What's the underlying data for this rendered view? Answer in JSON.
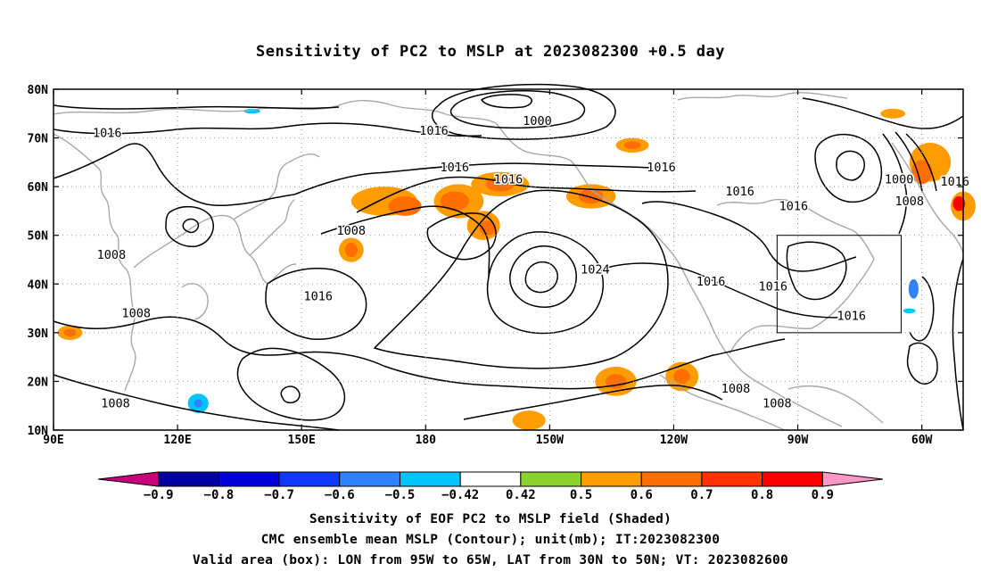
{
  "title": "Sensitivity of PC2 to MSLP at 2023082300 +0.5 day",
  "captions": {
    "line1": "Sensitivity of EOF PC2 to MSLP field (Shaded)",
    "line2": "CMC ensemble mean MSLP (Contour); unit(mb); IT:2023082300",
    "line3": "Valid area (box): LON from 95W to 65W, LAT from 30N to 50N; VT: 2023082600"
  },
  "chart_data": {
    "type": "contour-map",
    "title": "Sensitivity of PC2 to MSLP at 2023082300 +0.5 day",
    "xlim_lon_east": [
      90,
      310
    ],
    "ylim_lat": [
      10,
      80
    ],
    "x_ticks": [
      {
        "lon": 90,
        "label": "90E"
      },
      {
        "lon": 120,
        "label": "120E"
      },
      {
        "lon": 150,
        "label": "150E"
      },
      {
        "lon": 180,
        "label": "180"
      },
      {
        "lon": 210,
        "label": "150W"
      },
      {
        "lon": 240,
        "label": "120W"
      },
      {
        "lon": 270,
        "label": "90W"
      },
      {
        "lon": 300,
        "label": "60W"
      }
    ],
    "y_ticks": [
      {
        "lat": 10,
        "label": "10N"
      },
      {
        "lat": 20,
        "label": "20N"
      },
      {
        "lat": 30,
        "label": "30N"
      },
      {
        "lat": 40,
        "label": "40N"
      },
      {
        "lat": 50,
        "label": "50N"
      },
      {
        "lat": 60,
        "label": "60N"
      },
      {
        "lat": 70,
        "label": "70N"
      },
      {
        "lat": 80,
        "label": "80N"
      }
    ],
    "grid": true,
    "valid_box": {
      "lon_west": 265,
      "lon_east": 295,
      "lat_south": 30,
      "lat_north": 50
    },
    "colorbar": {
      "levels": [
        "-0.9",
        "-0.8",
        "-0.7",
        "-0.6",
        "-0.5",
        "-0.42",
        "0.42",
        "0.5",
        "0.6",
        "0.7",
        "0.8",
        "0.9"
      ],
      "colors": [
        "#c8007a",
        "#0000a0",
        "#0000d8",
        "#0f37ff",
        "#2e82ff",
        "#00c4ff",
        "#ffffff",
        "#8cd22d",
        "#ff9c00",
        "#ff6e00",
        "#ff3200",
        "#ff0000",
        "#ff96c8"
      ]
    },
    "contour_labels": [
      {
        "text": "1000",
        "lon": 207,
        "lat": 73.5
      },
      {
        "text": "1016",
        "lon": 103,
        "lat": 71
      },
      {
        "text": "1016",
        "lon": 182,
        "lat": 71.5
      },
      {
        "text": "1016",
        "lon": 187,
        "lat": 64
      },
      {
        "text": "1016",
        "lon": 200,
        "lat": 61.5
      },
      {
        "text": "1016",
        "lon": 237,
        "lat": 64
      },
      {
        "text": "1016",
        "lon": 256,
        "lat": 59
      },
      {
        "text": "1016",
        "lon": 269,
        "lat": 56
      },
      {
        "text": "1000",
        "lon": 294.5,
        "lat": 61.5
      },
      {
        "text": "1008",
        "lon": 297,
        "lat": 57
      },
      {
        "text": "1016",
        "lon": 308,
        "lat": 61
      },
      {
        "text": "1008",
        "lon": 162,
        "lat": 51
      },
      {
        "text": "1008",
        "lon": 104,
        "lat": 46
      },
      {
        "text": "1024",
        "lon": 221,
        "lat": 43
      },
      {
        "text": "1016",
        "lon": 249,
        "lat": 40.5
      },
      {
        "text": "1016",
        "lon": 264,
        "lat": 39.5
      },
      {
        "text": "1016",
        "lon": 154,
        "lat": 37.5
      },
      {
        "text": "1008",
        "lon": 110,
        "lat": 34
      },
      {
        "text": "1016",
        "lon": 283,
        "lat": 33.5
      },
      {
        "text": "1008",
        "lon": 255,
        "lat": 18.5
      },
      {
        "text": "1008",
        "lon": 265,
        "lat": 15.5
      },
      {
        "text": "1008",
        "lon": 105,
        "lat": 15.5
      }
    ],
    "shaded_regions": [
      {
        "value": 0.5,
        "lon": 170,
        "lat": 57,
        "rx": 8,
        "ry": 3
      },
      {
        "value": 0.6,
        "lon": 175,
        "lat": 56,
        "rx": 4,
        "ry": 2
      },
      {
        "value": 0.5,
        "lon": 188,
        "lat": 57,
        "rx": 6,
        "ry": 3.5
      },
      {
        "value": 0.6,
        "lon": 187,
        "lat": 57,
        "rx": 3.5,
        "ry": 2
      },
      {
        "value": 0.5,
        "lon": 198,
        "lat": 60.5,
        "rx": 7,
        "ry": 2.5
      },
      {
        "value": 0.6,
        "lon": 198,
        "lat": 60.5,
        "rx": 3.5,
        "ry": 1.5
      },
      {
        "value": 0.5,
        "lon": 220,
        "lat": 58,
        "rx": 6,
        "ry": 2.5
      },
      {
        "value": 0.6,
        "lon": 220,
        "lat": 58,
        "rx": 3,
        "ry": 1.5
      },
      {
        "value": 0.5,
        "lon": 194,
        "lat": 52,
        "rx": 4,
        "ry": 3
      },
      {
        "value": 0.6,
        "lon": 195,
        "lat": 51.5,
        "rx": 2,
        "ry": 1.5
      },
      {
        "value": 0.5,
        "lon": 162,
        "lat": 47,
        "rx": 3,
        "ry": 2.5
      },
      {
        "value": 0.6,
        "lon": 162,
        "lat": 47,
        "rx": 1.5,
        "ry": 1.5
      },
      {
        "value": 0.5,
        "lon": 230,
        "lat": 68.5,
        "rx": 4,
        "ry": 1.5
      },
      {
        "value": 0.6,
        "lon": 230,
        "lat": 68.5,
        "rx": 2,
        "ry": 0.8
      },
      {
        "value": 0.5,
        "lon": 302,
        "lat": 65,
        "rx": 5,
        "ry": 4
      },
      {
        "value": 0.6,
        "lon": 300,
        "lat": 63,
        "rx": 2.5,
        "ry": 2.5
      },
      {
        "value": 0.5,
        "lon": 310,
        "lat": 56,
        "rx": 3,
        "ry": 3
      },
      {
        "value": 0.8,
        "lon": 309,
        "lat": 56.5,
        "rx": 1.5,
        "ry": 1.5
      },
      {
        "value": 0.5,
        "lon": 293,
        "lat": 75,
        "rx": 3,
        "ry": 1
      },
      {
        "value": 0.5,
        "lon": 226,
        "lat": 20,
        "rx": 5,
        "ry": 3
      },
      {
        "value": 0.6,
        "lon": 226,
        "lat": 20,
        "rx": 2.5,
        "ry": 1.5
      },
      {
        "value": 0.5,
        "lon": 242,
        "lat": 21,
        "rx": 4,
        "ry": 3
      },
      {
        "value": 0.6,
        "lon": 242,
        "lat": 21,
        "rx": 2,
        "ry": 1.5
      },
      {
        "value": 0.5,
        "lon": 205,
        "lat": 12,
        "rx": 4,
        "ry": 2
      },
      {
        "value": 0.5,
        "lon": 94,
        "lat": 30,
        "rx": 3,
        "ry": 1.5
      },
      {
        "value": 0.6,
        "lon": 94,
        "lat": 30,
        "rx": 1.5,
        "ry": 0.8
      },
      {
        "value": -0.5,
        "lon": 125,
        "lat": 15.5,
        "rx": 2.5,
        "ry": 2
      },
      {
        "value": -0.6,
        "lon": 125,
        "lat": 15.5,
        "rx": 1,
        "ry": 0.8
      },
      {
        "value": -0.6,
        "lon": 298,
        "lat": 39,
        "rx": 1.2,
        "ry": 2
      },
      {
        "value": -0.5,
        "lon": 297,
        "lat": 34.5,
        "rx": 1.5,
        "ry": 0.5
      },
      {
        "value": -0.5,
        "lon": 138,
        "lat": 75.5,
        "rx": 2,
        "ry": 0.5
      }
    ]
  }
}
